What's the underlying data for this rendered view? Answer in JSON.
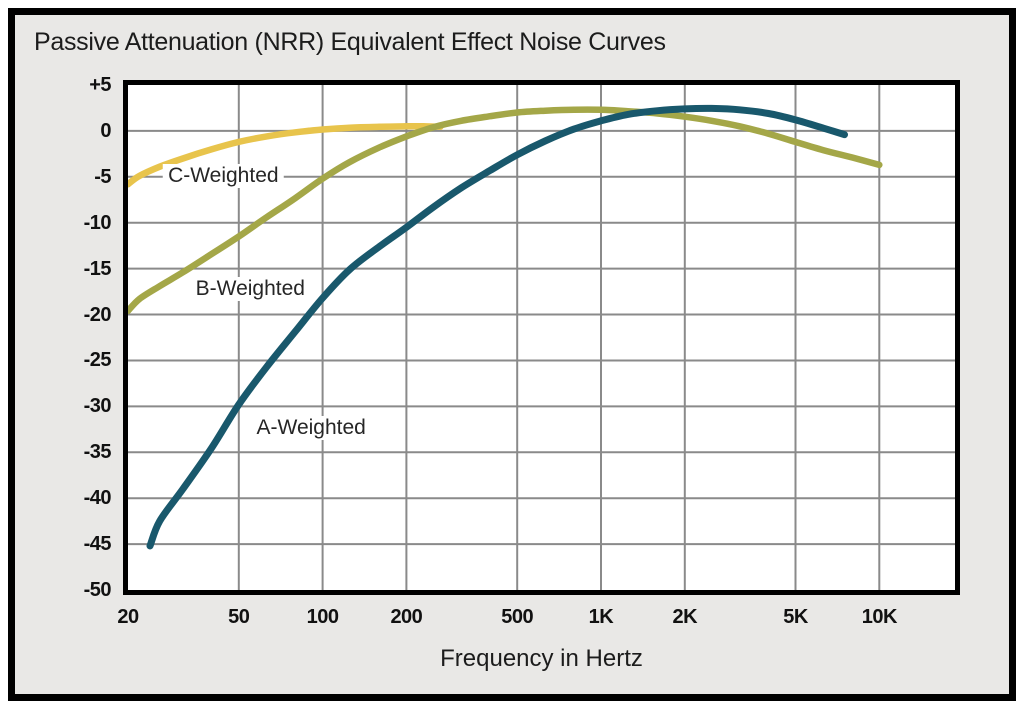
{
  "frame_title": "Passive Attenuation (NRR) Equivalent Effect Noise Curves",
  "chart_data": {
    "type": "line",
    "title": "Passive Attenuation (NRR) Equivalent Effect Noise Curves",
    "xlabel": "Frequency in Hertz",
    "ylabel": "",
    "x_scale": "log",
    "x_domain": [
      20,
      18700
    ],
    "y_domain": [
      -50,
      5
    ],
    "grid": true,
    "grid_color": "#8a8a8a",
    "plot_background": "#ffffff",
    "frame_background": "#e9e8e6",
    "x_ticks": [
      {
        "label": "20",
        "value": 20,
        "gridline": false
      },
      {
        "label": "50",
        "value": 50,
        "gridline": true
      },
      {
        "label": "100",
        "value": 100,
        "gridline": true
      },
      {
        "label": "200",
        "value": 200,
        "gridline": true
      },
      {
        "label": "500",
        "value": 500,
        "gridline": true
      },
      {
        "label": "1K",
        "value": 1000,
        "gridline": true
      },
      {
        "label": "2K",
        "value": 2000,
        "gridline": true
      },
      {
        "label": "5K",
        "value": 5000,
        "gridline": true
      },
      {
        "label": "10K",
        "value": 10000,
        "gridline": true
      }
    ],
    "y_ticks": [
      {
        "label": "+5",
        "value": 5,
        "gridline": false
      },
      {
        "label": "0",
        "value": 0,
        "gridline": true
      },
      {
        "label": "-5",
        "value": -5,
        "gridline": true
      },
      {
        "label": "-10",
        "value": -10,
        "gridline": true
      },
      {
        "label": "-15",
        "value": -15,
        "gridline": true
      },
      {
        "label": "-20",
        "value": -20,
        "gridline": true
      },
      {
        "label": "-25",
        "value": -25,
        "gridline": true
      },
      {
        "label": "-30",
        "value": -30,
        "gridline": true
      },
      {
        "label": "-35",
        "value": -35,
        "gridline": true
      },
      {
        "label": "-40",
        "value": -40,
        "gridline": true
      },
      {
        "label": "-45",
        "value": -45,
        "gridline": true
      },
      {
        "label": "-50",
        "value": -50,
        "gridline": false
      }
    ],
    "series": [
      {
        "name": "C-Weighted",
        "color": "#e8c44c",
        "stroke_width": 6.5,
        "label_at": [
          44,
          -4.9
        ],
        "points": [
          [
            20,
            -5.8
          ],
          [
            22,
            -4.9
          ],
          [
            26,
            -3.9
          ],
          [
            31.5,
            -3.0
          ],
          [
            40,
            -2.0
          ],
          [
            50,
            -1.2
          ],
          [
            63,
            -0.6
          ],
          [
            80,
            -0.15
          ],
          [
            100,
            0.15
          ],
          [
            125,
            0.35
          ],
          [
            160,
            0.45
          ],
          [
            200,
            0.5
          ],
          [
            230,
            0.5
          ],
          [
            265,
            0.45
          ]
        ]
      },
      {
        "name": "B-Weighted",
        "color": "#a4a748",
        "stroke_width": 6.5,
        "label_at": [
          55,
          -17.2
        ],
        "points": [
          [
            20,
            -19.6
          ],
          [
            22,
            -18.3
          ],
          [
            26,
            -16.9
          ],
          [
            31.5,
            -15.4
          ],
          [
            40,
            -13.4
          ],
          [
            50,
            -11.5
          ],
          [
            63,
            -9.4
          ],
          [
            80,
            -7.3
          ],
          [
            100,
            -5.2
          ],
          [
            125,
            -3.4
          ],
          [
            160,
            -1.8
          ],
          [
            200,
            -0.6
          ],
          [
            250,
            0.4
          ],
          [
            315,
            1.1
          ],
          [
            400,
            1.6
          ],
          [
            500,
            2.0
          ],
          [
            630,
            2.2
          ],
          [
            800,
            2.3
          ],
          [
            1000,
            2.3
          ],
          [
            1250,
            2.15
          ],
          [
            1600,
            1.9
          ],
          [
            2000,
            1.55
          ],
          [
            2500,
            1.1
          ],
          [
            3150,
            0.5
          ],
          [
            4000,
            -0.3
          ],
          [
            5000,
            -1.2
          ],
          [
            6300,
            -2.1
          ],
          [
            8000,
            -2.9
          ],
          [
            10000,
            -3.7
          ]
        ]
      },
      {
        "name": "A-Weighted",
        "color": "#19586c",
        "stroke_width": 7,
        "label_at": [
          91,
          -32.4
        ],
        "points": [
          [
            24,
            -45.2
          ],
          [
            26,
            -42.5
          ],
          [
            31.5,
            -39.0
          ],
          [
            40,
            -34.5
          ],
          [
            50,
            -29.8
          ],
          [
            63,
            -25.7
          ],
          [
            80,
            -21.8
          ],
          [
            100,
            -18.2
          ],
          [
            125,
            -15.1
          ],
          [
            160,
            -12.6
          ],
          [
            200,
            -10.5
          ],
          [
            250,
            -8.3
          ],
          [
            315,
            -6.2
          ],
          [
            400,
            -4.3
          ],
          [
            500,
            -2.6
          ],
          [
            630,
            -1.1
          ],
          [
            800,
            0.2
          ],
          [
            1000,
            1.1
          ],
          [
            1250,
            1.8
          ],
          [
            1600,
            2.2
          ],
          [
            2000,
            2.4
          ],
          [
            2500,
            2.45
          ],
          [
            3150,
            2.3
          ],
          [
            4000,
            1.9
          ],
          [
            5000,
            1.2
          ],
          [
            6300,
            0.3
          ],
          [
            7500,
            -0.4
          ]
        ]
      }
    ]
  }
}
